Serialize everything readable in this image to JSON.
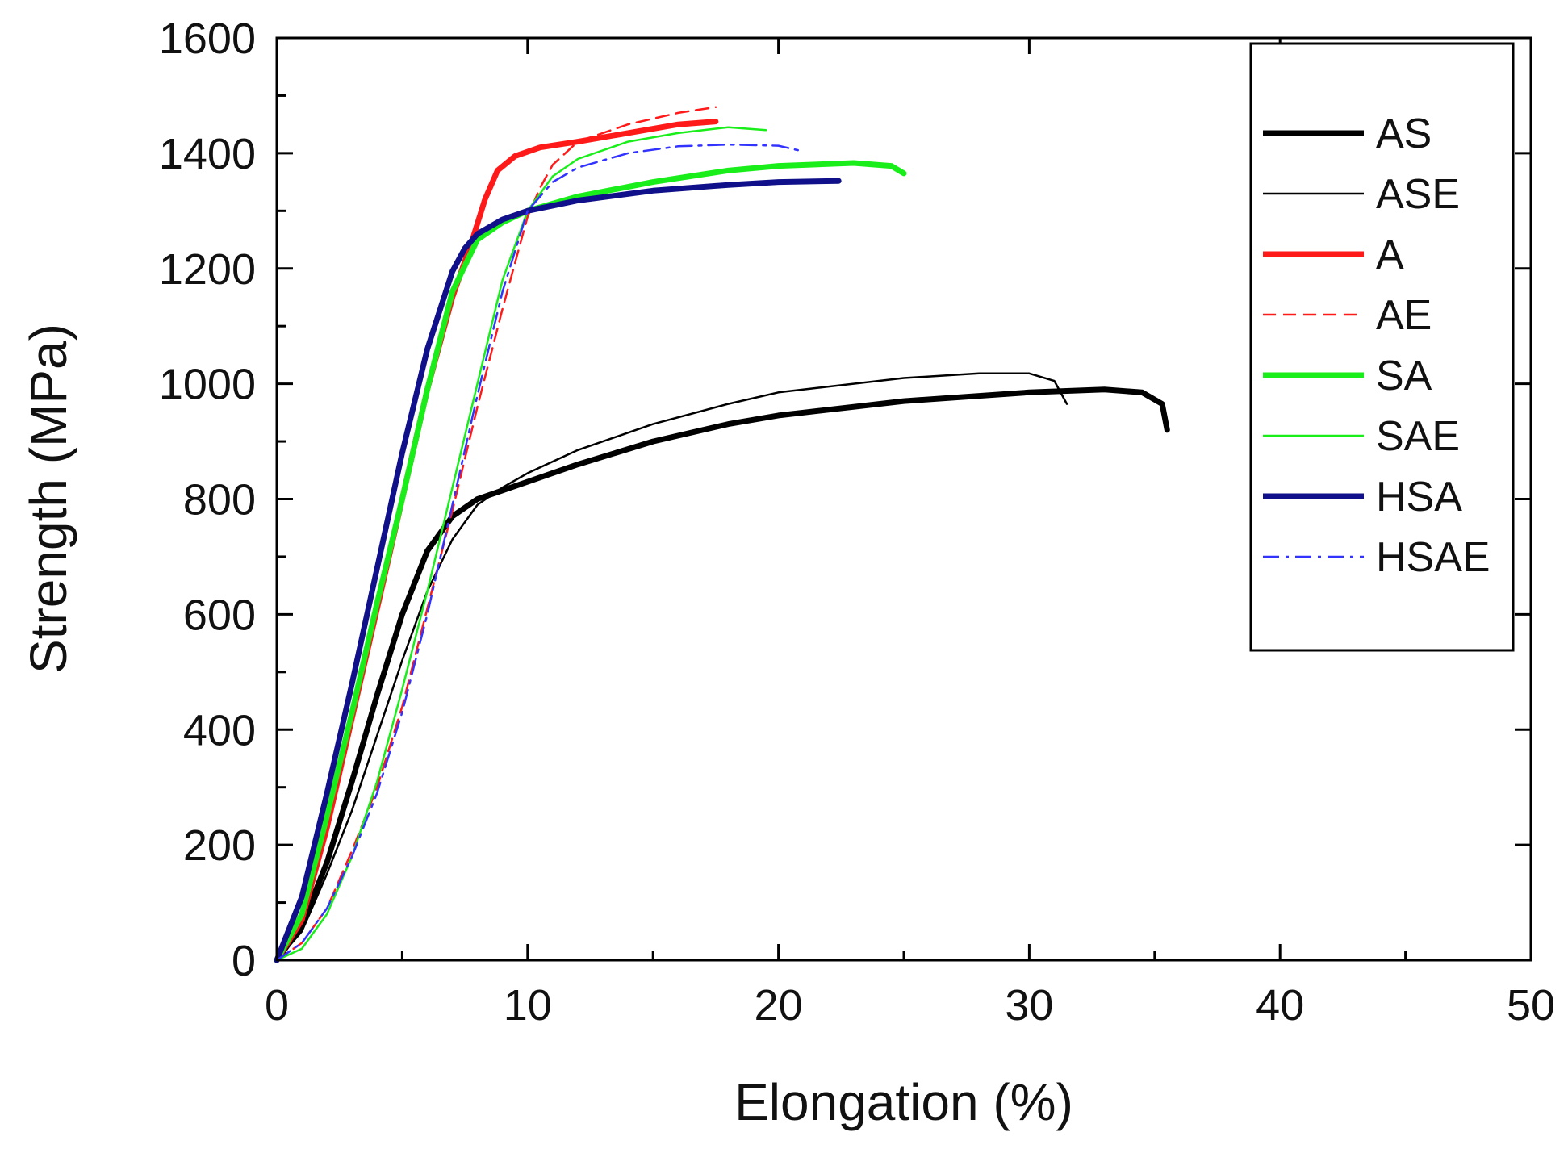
{
  "chart_data": {
    "type": "line",
    "title": "",
    "xlabel": "Elongation (%)",
    "ylabel": "Strength (MPa)",
    "xlim": [
      0,
      50
    ],
    "ylim": [
      0,
      1600
    ],
    "xticks": [
      0,
      10,
      20,
      30,
      40,
      50
    ],
    "yticks": [
      0,
      200,
      400,
      600,
      800,
      1000,
      1200,
      1400,
      1600
    ],
    "xtick_labels": [
      "0",
      "10",
      "20",
      "30",
      "40",
      "50"
    ],
    "ytick_labels": [
      "0",
      "200",
      "400",
      "600",
      "800",
      "1000",
      "1200",
      "1400",
      "1600"
    ],
    "grid": false,
    "legend_position": "top-right",
    "series": [
      {
        "name": "AS",
        "color": "#000000",
        "style": "solid",
        "weight": "heavy",
        "x": [
          0,
          1,
          2,
          3,
          4,
          5,
          6,
          7,
          8,
          9,
          10,
          12,
          15,
          18,
          20,
          25,
          30,
          33,
          34.5,
          35.3,
          35.5
        ],
        "y": [
          0,
          60,
          170,
          310,
          460,
          600,
          710,
          770,
          800,
          815,
          830,
          860,
          900,
          930,
          945,
          970,
          985,
          990,
          985,
          965,
          920
        ]
      },
      {
        "name": "ASE",
        "color": "#000000",
        "style": "solid",
        "weight": "thin",
        "x": [
          0,
          1,
          2,
          3,
          4,
          5,
          6,
          7,
          8,
          9,
          10,
          12,
          15,
          18,
          20,
          25,
          28,
          30,
          31,
          31.5
        ],
        "y": [
          0,
          50,
          150,
          260,
          390,
          520,
          640,
          730,
          790,
          820,
          845,
          885,
          930,
          965,
          985,
          1010,
          1018,
          1018,
          1005,
          965
        ]
      },
      {
        "name": "A",
        "color": "#ff1a1a",
        "style": "solid",
        "weight": "heavy",
        "x": [
          0,
          1,
          2,
          3,
          4,
          5,
          6,
          7,
          7.8,
          8.3,
          8.8,
          9.5,
          10.5,
          12,
          14,
          16,
          17.5
        ],
        "y": [
          0,
          70,
          230,
          420,
          610,
          800,
          990,
          1150,
          1250,
          1320,
          1370,
          1395,
          1410,
          1420,
          1435,
          1450,
          1455
        ]
      },
      {
        "name": "AE",
        "color": "#ff1a1a",
        "style": "dashed",
        "weight": "thin",
        "x": [
          0,
          1,
          2,
          3,
          4,
          5,
          6,
          7,
          8,
          9,
          10,
          10.5,
          11,
          12,
          14,
          16,
          17.5
        ],
        "y": [
          0,
          30,
          90,
          190,
          300,
          440,
          610,
          780,
          960,
          1130,
          1290,
          1340,
          1380,
          1420,
          1450,
          1470,
          1480
        ]
      },
      {
        "name": "SA",
        "color": "#1aee1a",
        "style": "solid",
        "weight": "heavy",
        "x": [
          0,
          1,
          2,
          3,
          4,
          5,
          6,
          7,
          8,
          9,
          10,
          12,
          15,
          18,
          20,
          23,
          24.5,
          25
        ],
        "y": [
          0,
          80,
          250,
          430,
          620,
          800,
          990,
          1160,
          1250,
          1280,
          1300,
          1325,
          1350,
          1370,
          1378,
          1383,
          1378,
          1365
        ]
      },
      {
        "name": "SAE",
        "color": "#1aee1a",
        "style": "solid",
        "weight": "thin",
        "x": [
          0,
          1,
          2,
          3,
          4,
          5,
          6,
          7,
          8,
          9,
          10,
          11,
          12,
          14,
          16,
          18,
          19.5
        ],
        "y": [
          0,
          20,
          80,
          180,
          310,
          470,
          640,
          820,
          1000,
          1180,
          1300,
          1360,
          1390,
          1420,
          1435,
          1445,
          1440
        ]
      },
      {
        "name": "HSA",
        "color": "#10108a",
        "style": "solid",
        "weight": "heavy",
        "x": [
          0,
          1,
          2,
          3,
          4,
          5,
          6,
          7,
          7.5,
          8,
          9,
          10,
          12,
          15,
          18,
          20,
          22.4
        ],
        "y": [
          0,
          110,
          290,
          480,
          680,
          880,
          1060,
          1195,
          1235,
          1260,
          1285,
          1300,
          1318,
          1335,
          1345,
          1350,
          1352
        ]
      },
      {
        "name": "HSAE",
        "color": "#3333ff",
        "style": "dashdot",
        "weight": "thin",
        "x": [
          0,
          1,
          2,
          3,
          4,
          5,
          6,
          7,
          8,
          9,
          10,
          11,
          12,
          14,
          16,
          18,
          20,
          20.8
        ],
        "y": [
          0,
          30,
          90,
          180,
          290,
          430,
          600,
          790,
          980,
          1160,
          1300,
          1350,
          1375,
          1400,
          1412,
          1415,
          1413,
          1405
        ]
      }
    ]
  }
}
